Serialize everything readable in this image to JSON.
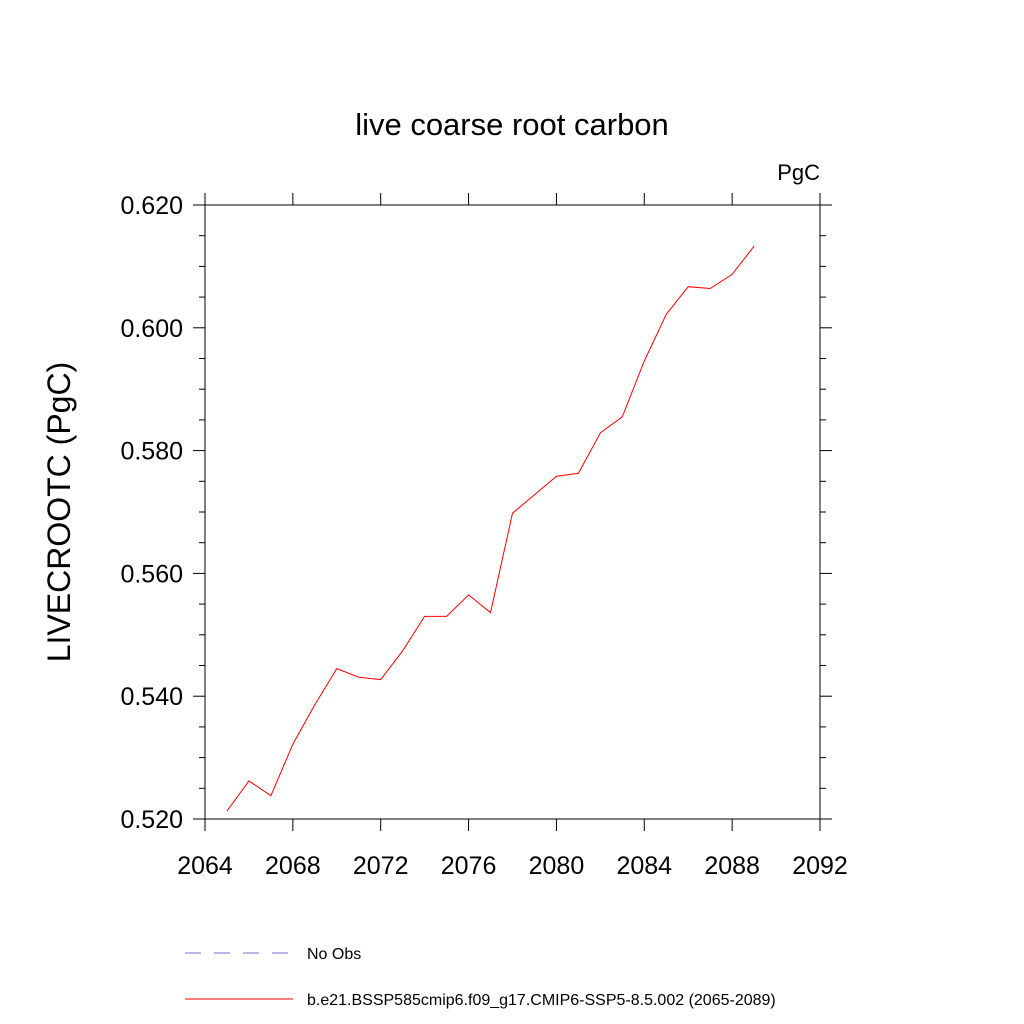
{
  "chart_data": {
    "type": "line",
    "title": "live coarse root carbon",
    "units": "PgC",
    "ylabel": "LIVECROOTC  (PgC)",
    "xlabel": "",
    "xlim": [
      2064,
      2092
    ],
    "ylim": [
      0.52,
      0.62
    ],
    "xticks": [
      "2064",
      "2068",
      "2072",
      "2076",
      "2080",
      "2084",
      "2088",
      "2092"
    ],
    "yticks": [
      "0.520",
      "0.540",
      "0.560",
      "0.580",
      "0.600",
      "0.620"
    ],
    "grid": false,
    "legend_position": "bottom",
    "series": [
      {
        "name": "b.e21.BSSP585cmip6.f09_g17.CMIP6-SSP5-8.5.002 (2065-2089)",
        "color": "#ff0000",
        "style": "solid",
        "x": [
          2065,
          2066,
          2067,
          2068,
          2069,
          2070,
          2071,
          2072,
          2073,
          2074,
          2075,
          2076,
          2077,
          2078,
          2079,
          2080,
          2081,
          2082,
          2083,
          2084,
          2085,
          2086,
          2087,
          2088,
          2089
        ],
        "y": [
          0.5213,
          0.5262,
          0.5238,
          0.5322,
          0.5386,
          0.5445,
          0.5431,
          0.5427,
          0.5474,
          0.553,
          0.553,
          0.5565,
          0.5536,
          0.5698,
          0.5728,
          0.5758,
          0.5763,
          0.5829,
          0.5855,
          0.5946,
          0.6022,
          0.6067,
          0.6064,
          0.6087,
          0.6133
        ]
      }
    ],
    "legend": [
      {
        "label": "No Obs",
        "color": "#7a6fcf",
        "style": "dashed"
      },
      {
        "label": "b.e21.BSSP585cmip6.f09_g17.CMIP6-SSP5-8.5.002 (2065-2089)",
        "color": "#ff0000",
        "style": "solid"
      }
    ]
  }
}
